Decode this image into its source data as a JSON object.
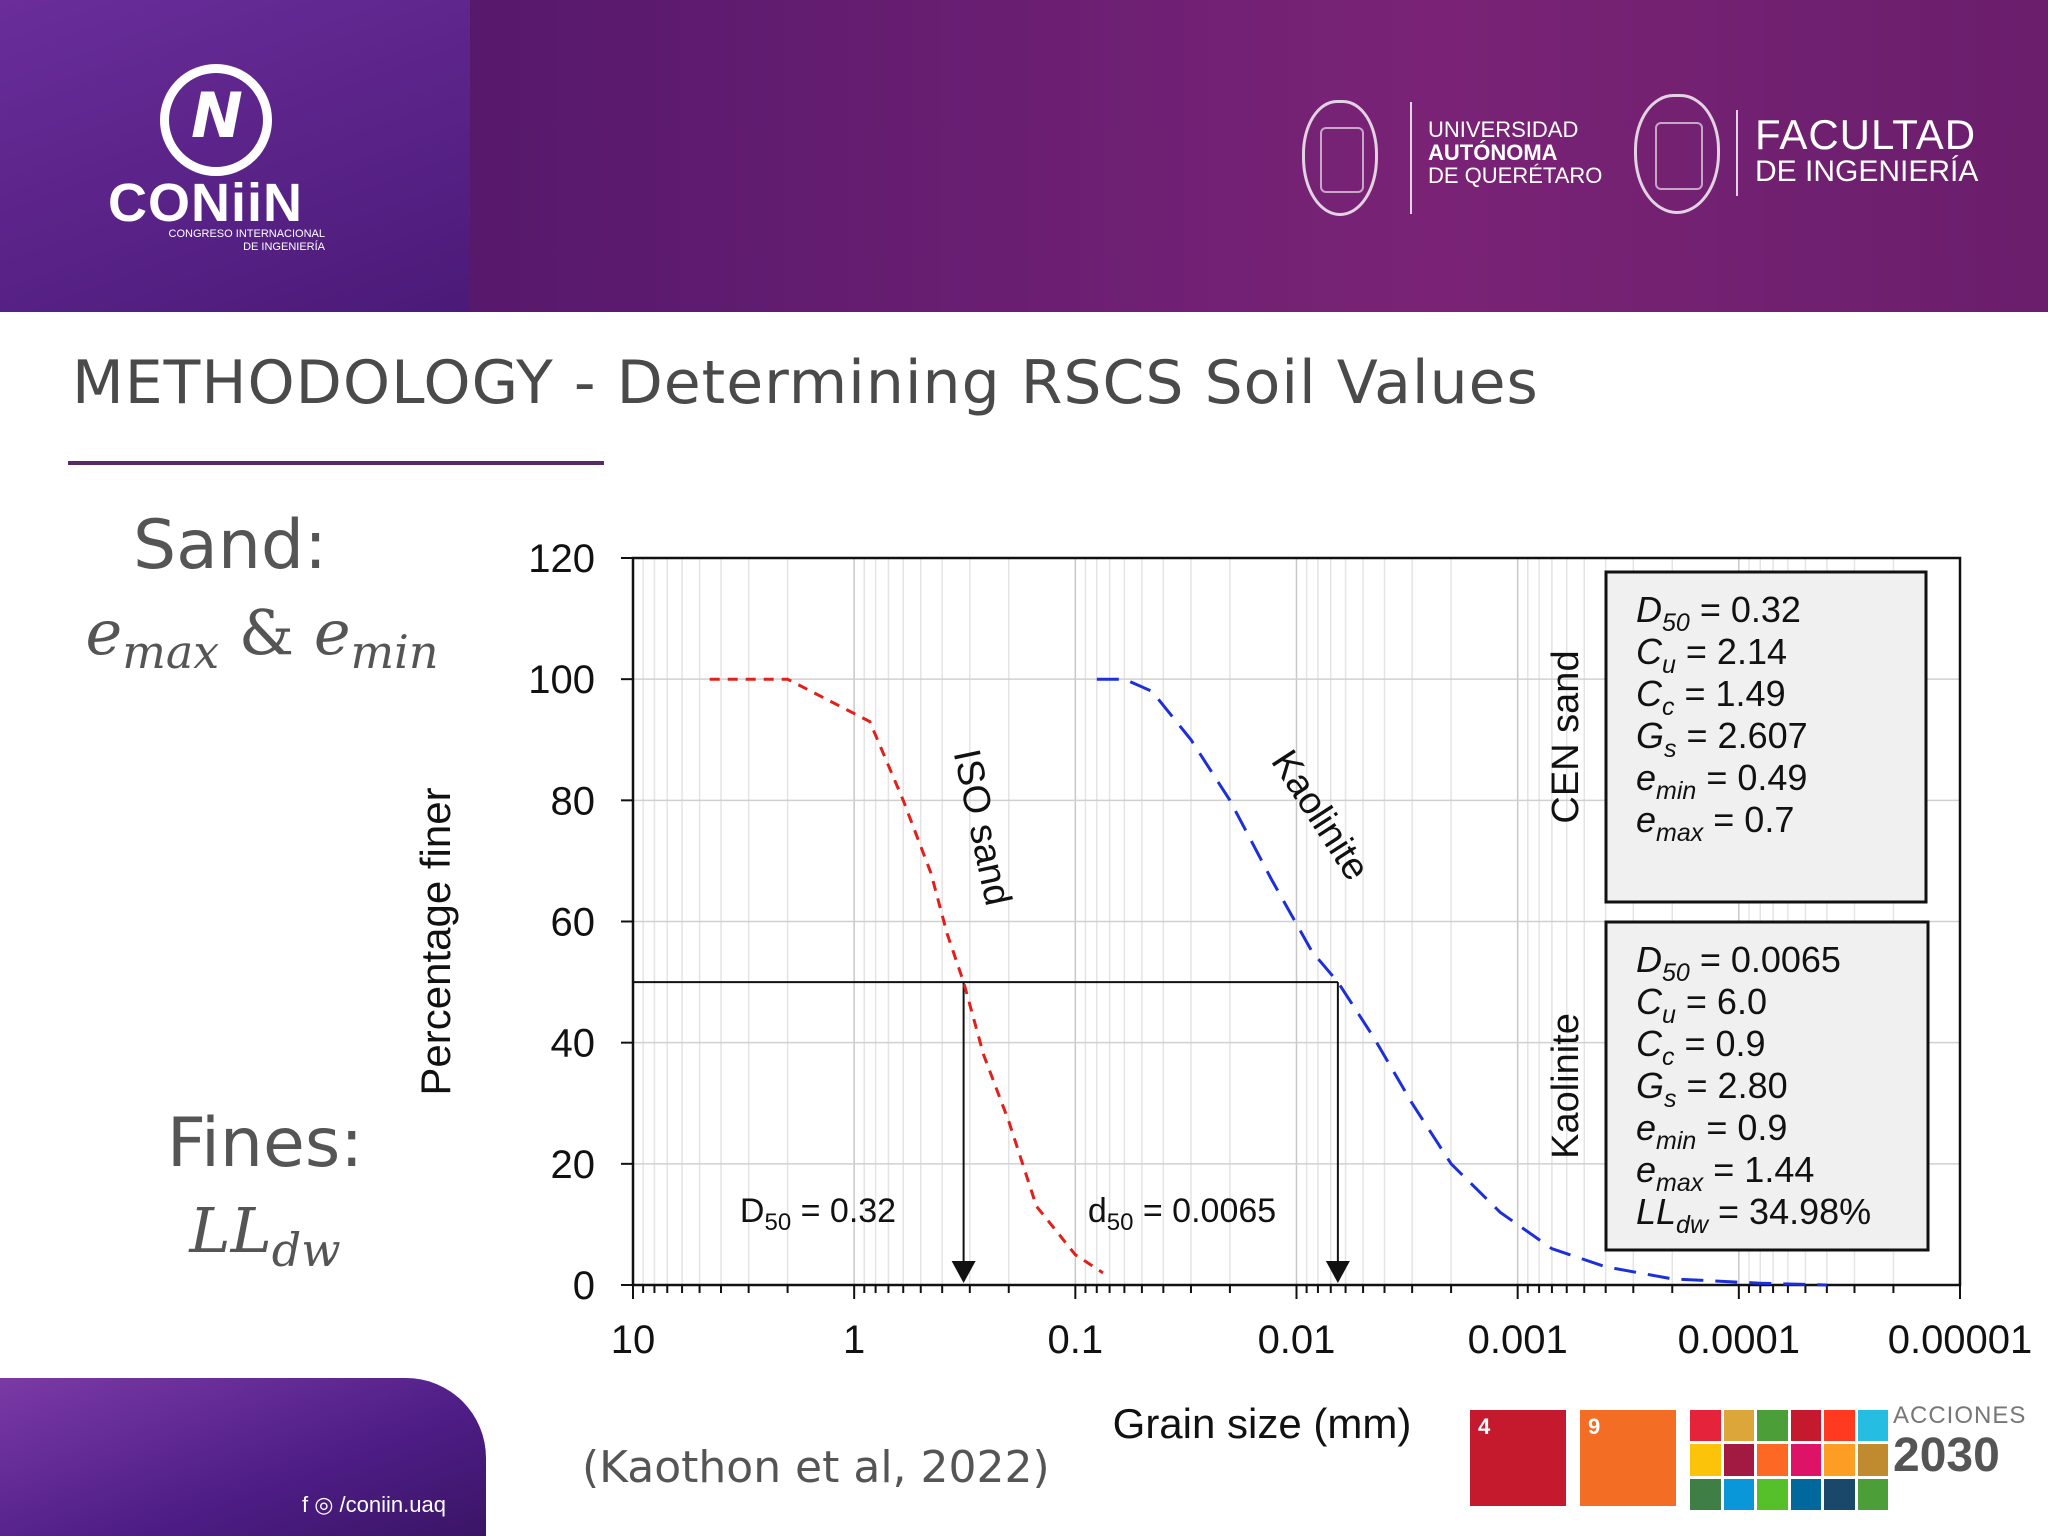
{
  "header": {
    "brand_name": "CONiiN",
    "brand_sub_1": "CONGRESO INTERNACIONAL",
    "brand_sub_2": "DE INGENIERÍA",
    "uni_line1": "UNIVERSIDAD",
    "uni_line2": "AUTÓNOMA",
    "uni_line3": "DE QUERÉTARO",
    "fac_line1": "FACULTAD",
    "fac_line2": "DE INGENIERÍA"
  },
  "slide": {
    "title": "METHODOLOGY - Determining RSCS Soil Values",
    "sand_heading": "Sand:",
    "fines_heading": "Fines:",
    "citation": "(Kaothon et al, 2022)"
  },
  "footer": {
    "social": "f ◎ /coniin.uaq",
    "sdg4_num": "4",
    "sdg9_num": "9",
    "acciones": "ACCIONES",
    "year": "2030"
  },
  "colors": {
    "iso_sand": "#e0201b",
    "kaolinite": "#1c2fd8",
    "header_purple": "#5b1a6e"
  },
  "chart_data": {
    "type": "line",
    "xlabel": "Grain size (mm)",
    "ylabel": "Percentage finer",
    "x_scale": "log",
    "x_reversed": true,
    "xlim": [
      10,
      1e-05
    ],
    "ylim": [
      0,
      120
    ],
    "x_ticks": [
      "10",
      "1",
      "0.1",
      "0.01",
      "0.001",
      "0.0001",
      "0.00001"
    ],
    "y_ticks": [
      "0",
      "20",
      "40",
      "60",
      "80",
      "100",
      "120"
    ],
    "grid": true,
    "series": [
      {
        "name": "ISO sand",
        "color": "#e0201b",
        "style": "dashed",
        "points": [
          [
            4.5,
            100
          ],
          [
            2.0,
            100
          ],
          [
            0.85,
            93
          ],
          [
            0.6,
            80
          ],
          [
            0.45,
            68
          ],
          [
            0.38,
            58
          ],
          [
            0.32,
            50
          ],
          [
            0.26,
            38
          ],
          [
            0.2,
            27
          ],
          [
            0.15,
            13
          ],
          [
            0.1,
            5
          ],
          [
            0.075,
            2
          ]
        ]
      },
      {
        "name": "Kaolinite",
        "color": "#1c2fd8",
        "style": "dashed",
        "points": [
          [
            0.08,
            100
          ],
          [
            0.06,
            100
          ],
          [
            0.045,
            98
          ],
          [
            0.03,
            90
          ],
          [
            0.02,
            80
          ],
          [
            0.013,
            67
          ],
          [
            0.0085,
            55
          ],
          [
            0.0065,
            50
          ],
          [
            0.0045,
            41
          ],
          [
            0.003,
            30
          ],
          [
            0.002,
            20
          ],
          [
            0.0012,
            12
          ],
          [
            0.0007,
            6
          ],
          [
            0.0004,
            3
          ],
          [
            0.0002,
            1
          ],
          [
            8e-05,
            0.3
          ],
          [
            4e-05,
            0
          ]
        ]
      }
    ],
    "d50_guides": [
      {
        "x": 0.32,
        "label_base": "D",
        "label_sub": "50",
        "label_value": " = 0.32"
      },
      {
        "x": 0.0065,
        "label_base": "d",
        "label_sub": "50",
        "label_value": " = 0.0065"
      }
    ],
    "curve_labels": [
      "ISO sand",
      "Kaolinite"
    ],
    "boxes": [
      {
        "side_label": "CEN sand",
        "rows": [
          {
            "sym": "D",
            "sub": "50",
            "val": " = 0.32"
          },
          {
            "sym": "C",
            "sub": "u",
            "val": " = 2.14"
          },
          {
            "sym": "C",
            "sub": "c",
            "val": " = 1.49"
          },
          {
            "sym": "G",
            "sub": "s",
            "val": " = 2.607"
          },
          {
            "sym": "e",
            "sub": "min",
            "val": " = 0.49"
          },
          {
            "sym": "e",
            "sub": "max",
            "val": " = 0.7"
          }
        ]
      },
      {
        "side_label": "Kaolinite",
        "rows": [
          {
            "sym": "D",
            "sub": "50",
            "val": " = 0.0065"
          },
          {
            "sym": "C",
            "sub": "u",
            "val": " = 6.0"
          },
          {
            "sym": "C",
            "sub": "c",
            "val": " = 0.9"
          },
          {
            "sym": "G",
            "sub": "s",
            "val": " = 2.80"
          },
          {
            "sym": "e",
            "sub": "min",
            "val": " = 0.9"
          },
          {
            "sym": "e",
            "sub": "max",
            "val": " = 1.44"
          },
          {
            "sym": "LL",
            "sub": "dw",
            "val": " = 34.98%"
          }
        ]
      }
    ]
  }
}
